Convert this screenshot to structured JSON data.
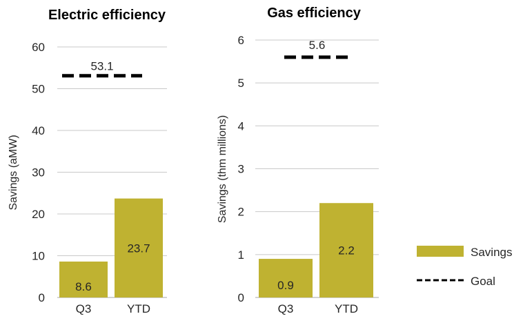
{
  "chart_data": [
    {
      "type": "bar",
      "title": "Electric efficiency",
      "ylabel": "Savings  (aMW)",
      "xlabel": "",
      "categories": [
        "Q3",
        "YTD"
      ],
      "series": [
        {
          "name": "Savings",
          "values": [
            8.6,
            23.7
          ]
        },
        {
          "name": "Goal",
          "values": [
            null,
            53.1
          ]
        }
      ],
      "value_labels": [
        "8.6",
        "23.7"
      ],
      "goal_label": "53.1",
      "ylim": [
        0,
        60
      ],
      "yticks": [
        0,
        10,
        20,
        30,
        40,
        50,
        60
      ],
      "ytick_labels": [
        "0",
        "10",
        "20",
        "30",
        "40",
        "50",
        "60"
      ],
      "grid": true
    },
    {
      "type": "bar",
      "title": "Gas efficiency",
      "ylabel": "Savings (thm millions)",
      "xlabel": "",
      "categories": [
        "Q3",
        "YTD"
      ],
      "series": [
        {
          "name": "Savings",
          "values": [
            0.9,
            2.2
          ]
        },
        {
          "name": "Goal",
          "values": [
            null,
            5.6
          ]
        }
      ],
      "value_labels": [
        "0.9",
        "2.2"
      ],
      "goal_label": "5.6",
      "ylim": [
        0,
        6
      ],
      "yticks": [
        0,
        1,
        2,
        3,
        4,
        5,
        6
      ],
      "ytick_labels": [
        "0",
        "1",
        "2",
        "3",
        "4",
        "5",
        "6"
      ],
      "grid": true
    }
  ],
  "legend": {
    "position": "bottom-right",
    "items": [
      {
        "label": "Savings",
        "style": "bar"
      },
      {
        "label": "Goal",
        "style": "dashed-line"
      }
    ]
  },
  "colors": {
    "bar": "#bfb231",
    "goal": "#000000",
    "grid": "#c8c8c8",
    "axis": "#a6a6a6"
  }
}
